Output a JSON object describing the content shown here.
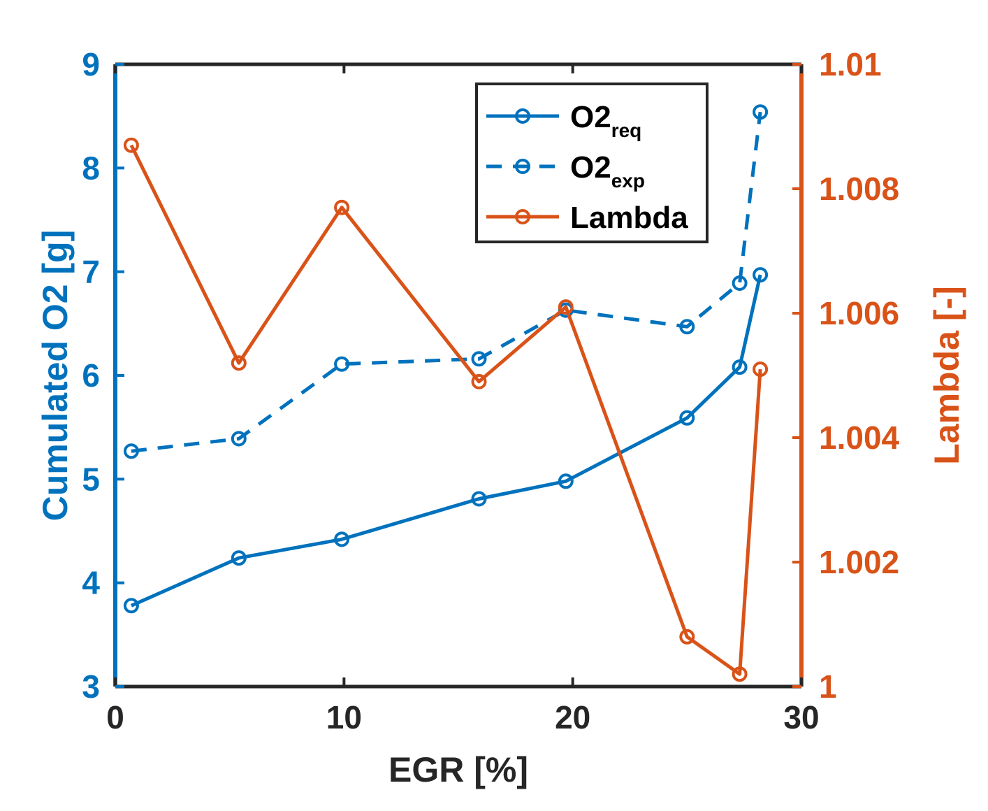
{
  "chart_data": {
    "type": "line",
    "title": "",
    "xlabel": "EGR [%]",
    "ylabel_left": "Cumulated O2 [g]",
    "ylabel_right": "Lambda [-]",
    "xlim": [
      0,
      30
    ],
    "ylim_left": [
      3,
      9
    ],
    "ylim_right": [
      1,
      1.01
    ],
    "xticks": [
      "0",
      "10",
      "20",
      "30"
    ],
    "yticks_left": [
      "3",
      "4",
      "5",
      "6",
      "7",
      "8",
      "9"
    ],
    "yticks_right": [
      "1",
      "1.002",
      "1.004",
      "1.006",
      "1.008",
      "1.01"
    ],
    "grid": false,
    "legend_position": "top-right",
    "colors": {
      "left_axis": "#0072BD",
      "right_axis": "#D95319",
      "frame": "#262626"
    },
    "series": [
      {
        "name": "O2",
        "subscript": "req",
        "axis": "left",
        "color": "#0072BD",
        "line_style": "solid",
        "marker": "circle",
        "x": [
          0.7,
          5.4,
          9.9,
          15.9,
          19.7,
          25.0,
          27.3,
          28.2
        ],
        "y": [
          3.78,
          4.24,
          4.42,
          4.81,
          4.98,
          5.59,
          6.08,
          6.97
        ]
      },
      {
        "name": "O2",
        "subscript": "exp",
        "axis": "left",
        "color": "#0072BD",
        "line_style": "dashed",
        "marker": "circle",
        "x": [
          0.7,
          5.4,
          9.9,
          15.9,
          19.7,
          25.0,
          27.3,
          28.2
        ],
        "y": [
          5.27,
          5.39,
          6.11,
          6.16,
          6.63,
          6.47,
          6.89,
          8.54
        ]
      },
      {
        "name": "Lambda",
        "subscript": "",
        "axis": "right",
        "color": "#D95319",
        "line_style": "solid",
        "marker": "circle",
        "x": [
          0.7,
          5.4,
          9.9,
          15.9,
          19.7,
          25.0,
          27.3,
          28.2
        ],
        "y": [
          1.0087,
          1.0052,
          1.0077,
          1.0049,
          1.0061,
          1.0008,
          1.0002,
          1.0051
        ]
      }
    ]
  }
}
